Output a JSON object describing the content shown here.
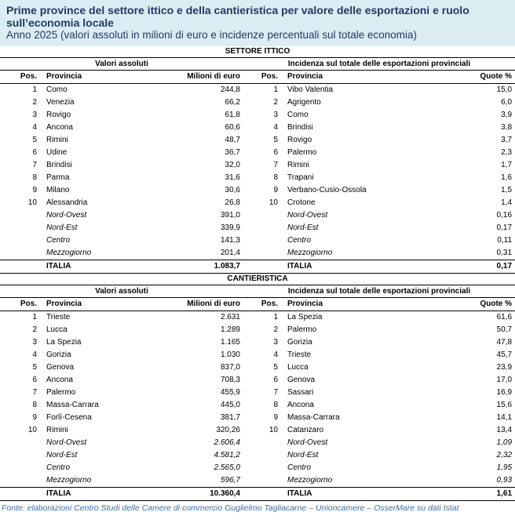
{
  "header": {
    "title": "Prime province del settore ittico e della cantieristica per valore delle esportazioni e ruolo sull’economia locale",
    "subtitle": "Anno 2025 (valori assoluti in milioni di euro e incidenze percentuali sul totale economia)"
  },
  "sections": [
    {
      "title": "SETTORE ITTICO",
      "left_heading": "Valori assoluti",
      "right_heading": "Incidenza sul totale delle esportazioni provinciali",
      "columns": [
        "Pos.",
        "Provincia",
        "Milioni di euro",
        "Pos.",
        "Provincia",
        "Quote %"
      ],
      "rows": [
        [
          "1",
          "Como",
          "244,8",
          "1",
          "Vibo Valentia",
          "15,0"
        ],
        [
          "2",
          "Venezia",
          "66,2",
          "2",
          "Agrigento",
          "6,0"
        ],
        [
          "3",
          "Rovigo",
          "61,8",
          "3",
          "Como",
          "3,9"
        ],
        [
          "4",
          "Ancona",
          "60,6",
          "4",
          "Brindisi",
          "3,8"
        ],
        [
          "5",
          "Rimini",
          "48,7",
          "5",
          "Rovigo",
          "3,7"
        ],
        [
          "6",
          "Udine",
          "36,7",
          "6",
          "Palermo",
          "2,3"
        ],
        [
          "7",
          "Brindisi",
          "32,0",
          "7",
          "Rimini",
          "1,7"
        ],
        [
          "8",
          "Parma",
          "31,6",
          "8",
          "Trapani",
          "1,6"
        ],
        [
          "9",
          "Milano",
          "30,6",
          "9",
          "Verbano-Cusio-Ossola",
          "1,5"
        ],
        [
          "10",
          "Alessandria",
          "26,8",
          "10",
          "Crotone",
          "1,4"
        ]
      ],
      "areas": [
        [
          "Nord-Ovest",
          "391,0",
          "Nord-Ovest",
          "0,16"
        ],
        [
          "Nord-Est",
          "339,9",
          "Nord-Est",
          "0,17"
        ],
        [
          "Centro",
          "141,3",
          "Centro",
          "0,11"
        ],
        [
          "Mezzogiorno",
          "201,4",
          "Mezzogiorno",
          "0,31"
        ]
      ],
      "total": [
        "ITALIA",
        "1.083,7",
        "ITALIA",
        "0,17"
      ]
    },
    {
      "title": "CANTIERISTICA",
      "left_heading": "Valori assoluti",
      "right_heading": "Incidenza sul totale delle esportazioni provinciali",
      "columns": [
        "Pos.",
        "Provincia",
        "Milioni di euro",
        "Pos.",
        "Provincia",
        "Quote %"
      ],
      "rows": [
        [
          "1",
          "Trieste",
          "2.631",
          "1",
          "La Spezia",
          "61,6"
        ],
        [
          "2",
          "Lucca",
          "1.289",
          "2",
          "Palermo",
          "50,7"
        ],
        [
          "3",
          "La Spezia",
          "1.165",
          "3",
          "Gorizia",
          "47,8"
        ],
        [
          "4",
          "Gorizia",
          "1.030",
          "4",
          "Trieste",
          "45,7"
        ],
        [
          "5",
          "Genova",
          "837,0",
          "5",
          "Lucca",
          "23,9"
        ],
        [
          "6",
          "Ancona",
          "708,3",
          "6",
          "Genova",
          "17,0"
        ],
        [
          "7",
          "Palermo",
          "455,9",
          "7",
          "Sassari",
          "16,9"
        ],
        [
          "8",
          "Massa-Carrara",
          "445,0",
          "8",
          "Ancona",
          "15,6"
        ],
        [
          "9",
          "Forlì-Cesena",
          "381,7",
          "9",
          "Massa-Carrara",
          "14,1"
        ],
        [
          "10",
          "Rimini",
          "320,26",
          "10",
          "Catanzaro",
          "13,4"
        ]
      ],
      "areas": [
        [
          "Nord-Ovest",
          "2.606,4",
          "Nord-Ovest",
          "1,09"
        ],
        [
          "Nord-Est",
          "4.581,2",
          "Nord-Est",
          "2,32"
        ],
        [
          "Centro",
          "2.565,0",
          "Centro",
          "1,95"
        ],
        [
          "Mezzogiorno",
          "596,7",
          "Mezzogiorno",
          "0,93"
        ]
      ],
      "total": [
        "ITALIA",
        "10.360,4",
        "ITALIA",
        "1,61"
      ]
    }
  ],
  "footer": "Fonte: elaborazioni Centro Studi delle Camere di commercio Guglielmo Tagliacarne – Unioncamere – OsserMare su dati Istat"
}
